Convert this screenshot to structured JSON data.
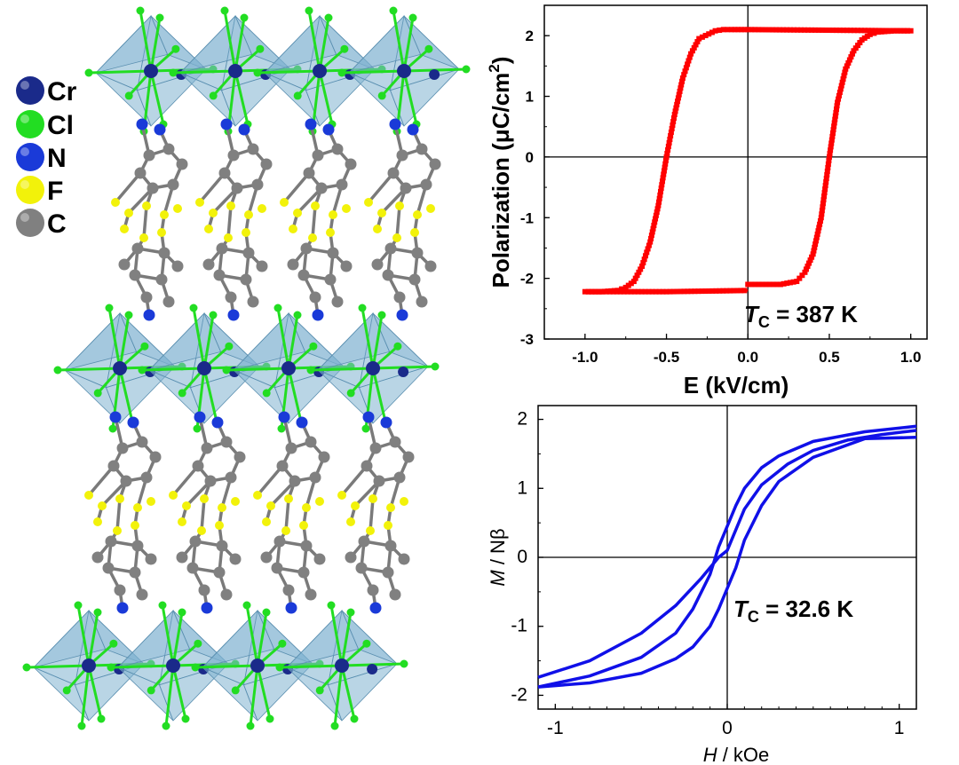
{
  "structure": {
    "legend": [
      {
        "label": "Cr",
        "color": "#1a2a8a"
      },
      {
        "label": "Cl",
        "color": "#22dd22"
      },
      {
        "label": "N",
        "color": "#1a3ad8"
      },
      {
        "label": "F",
        "color": "#f2f20a"
      },
      {
        "label": "C",
        "color": "#808080"
      }
    ],
    "colors": {
      "octahedron": "#7fb3d0",
      "bond_gray": "#7a7a7a"
    }
  },
  "chart_data": [
    {
      "type": "line",
      "ylabel": "Polarization (μC/cm",
      "ylabel_sup": "2",
      "ylabel_close": ")",
      "xlabel": "E (kV/cm)",
      "xlim": [
        -1.25,
        1.1
      ],
      "ylim": [
        -3,
        2.5
      ],
      "xticks": [
        "-1.0",
        "-0.5",
        "0.0",
        "0.5",
        "1.0"
      ],
      "xtick_values": [
        -1.0,
        -0.5,
        0.0,
        0.5,
        1.0
      ],
      "yticks": [
        "2",
        "1",
        "0",
        "-1",
        "-2",
        "-3"
      ],
      "ytick_values": [
        2,
        1,
        0,
        -1,
        -2,
        -3
      ],
      "color": "#ff0000",
      "annotation": {
        "T": "T",
        "sub": "C",
        "rest": " = 387 K"
      },
      "series": [
        {
          "points": [
            [
              0.0,
              -2.1
            ],
            [
              0.2,
              -2.1
            ],
            [
              0.3,
              -2.05
            ],
            [
              0.35,
              -1.9
            ],
            [
              0.4,
              -1.6
            ],
            [
              0.45,
              -1.0
            ],
            [
              0.5,
              0.0
            ],
            [
              0.55,
              0.9
            ],
            [
              0.6,
              1.45
            ],
            [
              0.65,
              1.75
            ],
            [
              0.7,
              1.93
            ],
            [
              0.75,
              2.02
            ],
            [
              0.8,
              2.06
            ],
            [
              0.9,
              2.08
            ],
            [
              1.0,
              2.08
            ]
          ]
        },
        {
          "points": [
            [
              1.0,
              2.08
            ],
            [
              0.5,
              2.09
            ],
            [
              0.0,
              2.1
            ],
            [
              -0.1,
              2.1
            ],
            [
              -0.15,
              2.1
            ],
            [
              -0.2,
              2.08
            ],
            [
              -0.3,
              1.95
            ],
            [
              -0.35,
              1.7
            ],
            [
              -0.4,
              1.3
            ],
            [
              -0.45,
              0.7
            ],
            [
              -0.5,
              0.0
            ],
            [
              -0.55,
              -0.8
            ],
            [
              -0.6,
              -1.4
            ],
            [
              -0.65,
              -1.8
            ],
            [
              -0.7,
              -2.05
            ],
            [
              -0.75,
              -2.15
            ],
            [
              -0.8,
              -2.2
            ],
            [
              -0.9,
              -2.22
            ],
            [
              -1.0,
              -2.22
            ]
          ]
        },
        {
          "points": [
            [
              -1.0,
              -2.22
            ],
            [
              -0.5,
              -2.22
            ],
            [
              0.0,
              -2.2
            ]
          ]
        }
      ]
    },
    {
      "type": "line",
      "ylabel_italic": "M",
      "ylabel_rest": " / Nβ",
      "xlabel_italic": "H",
      "xlabel_rest": " / kOe",
      "xlim": [
        -1.1,
        1.1
      ],
      "ylim": [
        -2.2,
        2.2
      ],
      "xticks": [
        "-1",
        "0",
        "1"
      ],
      "xtick_values": [
        -1,
        0,
        1
      ],
      "yticks": [
        "2",
        "1",
        "0",
        "-1",
        "-2"
      ],
      "ytick_values": [
        2,
        1,
        0,
        -1,
        -2
      ],
      "color": "#1010e8",
      "annotation": {
        "T": "T",
        "sub": "C",
        "rest": " = 32.6 K"
      },
      "series": [
        {
          "points": [
            [
              -1.1,
              -1.74
            ],
            [
              -0.8,
              -1.5
            ],
            [
              -0.5,
              -1.1
            ],
            [
              -0.3,
              -0.7
            ],
            [
              -0.15,
              -0.3
            ],
            [
              -0.05,
              0.0
            ],
            [
              0.0,
              0.1
            ],
            [
              0.05,
              0.4
            ],
            [
              0.1,
              0.7
            ],
            [
              0.2,
              1.05
            ],
            [
              0.35,
              1.35
            ],
            [
              0.5,
              1.55
            ],
            [
              0.7,
              1.7
            ],
            [
              0.9,
              1.78
            ],
            [
              1.1,
              1.84
            ]
          ]
        },
        {
          "points": [
            [
              1.1,
              1.9
            ],
            [
              0.8,
              1.82
            ],
            [
              0.5,
              1.68
            ],
            [
              0.3,
              1.47
            ],
            [
              0.2,
              1.3
            ],
            [
              0.1,
              1.0
            ],
            [
              0.05,
              0.75
            ],
            [
              0.0,
              0.45
            ],
            [
              -0.05,
              0.15
            ],
            [
              -0.1,
              -0.25
            ],
            [
              -0.2,
              -0.75
            ],
            [
              -0.3,
              -1.1
            ],
            [
              -0.5,
              -1.45
            ],
            [
              -0.8,
              -1.72
            ],
            [
              -1.1,
              -1.88
            ]
          ]
        },
        {
          "points": [
            [
              -1.1,
              -1.88
            ],
            [
              -0.8,
              -1.82
            ],
            [
              -0.5,
              -1.68
            ],
            [
              -0.3,
              -1.47
            ],
            [
              -0.2,
              -1.3
            ],
            [
              -0.1,
              -1.0
            ],
            [
              -0.05,
              -0.75
            ],
            [
              0.0,
              -0.45
            ],
            [
              0.05,
              -0.15
            ],
            [
              0.1,
              0.25
            ],
            [
              0.2,
              0.75
            ],
            [
              0.3,
              1.1
            ],
            [
              0.5,
              1.45
            ],
            [
              0.8,
              1.72
            ],
            [
              1.1,
              1.74
            ]
          ]
        }
      ]
    }
  ]
}
